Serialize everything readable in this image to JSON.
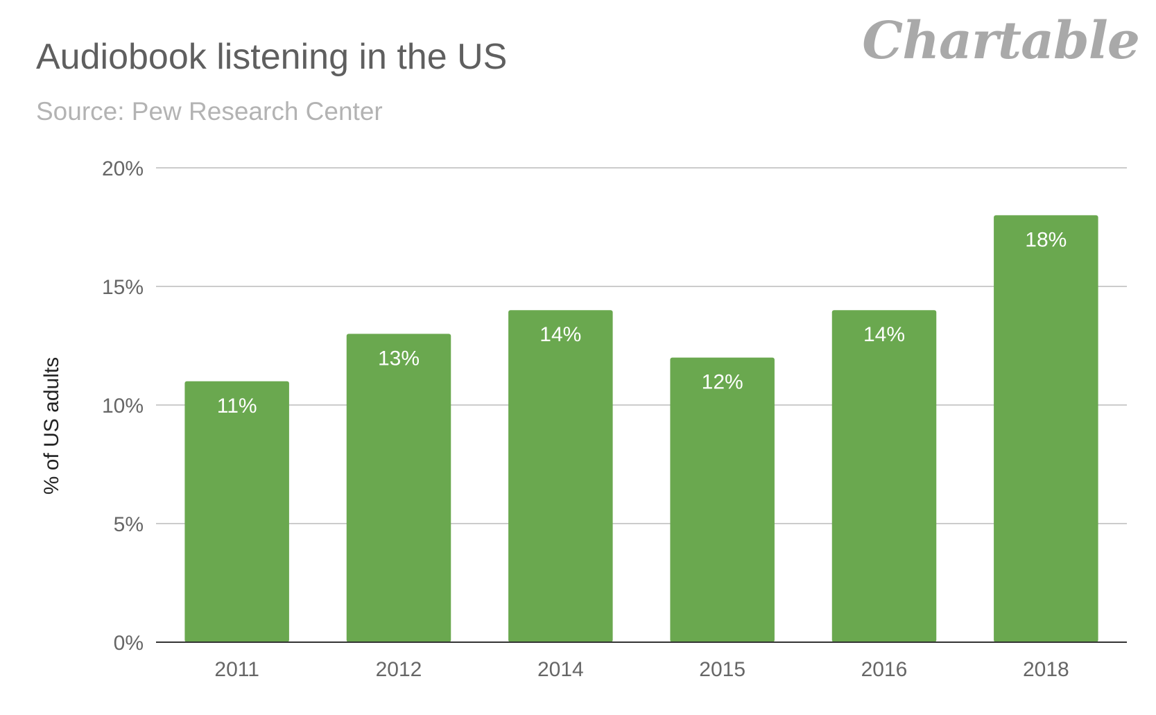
{
  "header": {
    "title": "Audiobook listening in the US",
    "subtitle": "Source: Pew Research Center",
    "brand": "Chartable"
  },
  "chart_data": {
    "type": "bar",
    "title": "Audiobook listening in the US",
    "subtitle": "Source: Pew Research Center",
    "xlabel": "",
    "ylabel": "% of US adults",
    "categories": [
      "2011",
      "2012",
      "2014",
      "2015",
      "2016",
      "2018"
    ],
    "values": [
      11,
      13,
      14,
      12,
      14,
      18
    ],
    "data_labels": [
      "11%",
      "13%",
      "14%",
      "12%",
      "14%",
      "18%"
    ],
    "ylim": [
      0,
      20
    ],
    "yticks": [
      0,
      5,
      10,
      15,
      20
    ],
    "ytick_labels": [
      "0%",
      "5%",
      "10%",
      "15%",
      "20%"
    ],
    "grid": true,
    "legend": "none",
    "bar_color": "#6aa84f"
  }
}
